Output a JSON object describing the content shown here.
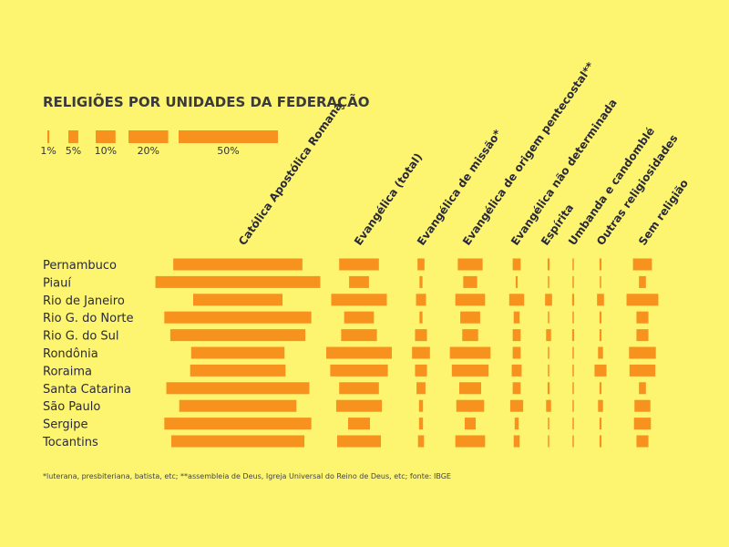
{
  "chart_data": {
    "type": "bar",
    "title": "RELIGIÕES POR UNIDADES DA FEDERAÇÃO",
    "unit": "%",
    "bar_color": "#f7921e",
    "background": "#fdf46f",
    "legend": [
      {
        "label": "1%",
        "value": 1
      },
      {
        "label": "5%",
        "value": 5
      },
      {
        "label": "10%",
        "value": 10
      },
      {
        "label": "20%",
        "value": 20
      },
      {
        "label": "50%",
        "value": 50
      }
    ],
    "categories": [
      "Pernambuco",
      "Piauí",
      "Rio de Janeiro",
      "Rio G. do Norte",
      "Rio G. do Sul",
      "Rondônia",
      "Roraima",
      "Santa Catarina",
      "São Paulo",
      "Sergipe",
      "Tocantins"
    ],
    "series": [
      {
        "name": "Católica Apostólica Romana",
        "values": [
          65,
          83,
          45,
          74,
          68,
          47,
          48,
          72,
          59,
          74,
          67
        ]
      },
      {
        "name": "Evangélica (total)",
        "values": [
          20,
          10,
          28,
          15,
          18,
          33,
          29,
          20,
          23,
          11,
          22
        ]
      },
      {
        "name": "Evangélica de missão*",
        "values": [
          3.5,
          1.5,
          5,
          1.5,
          6,
          9,
          6,
          4.5,
          2,
          2,
          3
        ]
      },
      {
        "name": "Evangélica de origem pentecostal**",
        "values": [
          12.5,
          7,
          15,
          10,
          8,
          20.5,
          18.5,
          11,
          14,
          5.5,
          15
        ]
      },
      {
        "name": "Evangélica não determinada",
        "values": [
          4,
          1,
          7.5,
          3,
          4,
          4,
          5,
          4,
          6.5,
          2,
          3
        ]
      },
      {
        "name": "Espírita",
        "values": [
          1,
          0.5,
          3.5,
          0.5,
          2.5,
          0.5,
          0.5,
          1,
          2.5,
          0.5,
          0.5
        ]
      },
      {
        "name": "Umbanda e candomblé",
        "values": [
          0.2,
          0.2,
          1,
          0.2,
          1,
          0.2,
          0.2,
          0.2,
          0.2,
          0.2,
          0.2
        ]
      },
      {
        "name": "Outras religiosidades",
        "values": [
          1,
          0.5,
          3.5,
          1,
          1,
          2.5,
          6,
          1,
          2.5,
          1,
          1
        ]
      },
      {
        "name": "Sem religião",
        "values": [
          9.5,
          3.5,
          16,
          6,
          6,
          13.5,
          13,
          3.5,
          8,
          8.5,
          6
        ]
      }
    ],
    "footnote": "*luterana, presbiteriana, batista, etc; **assembleia de Deus, Igreja Universal do Reino de Deus, etc; fonte: IBGE"
  }
}
